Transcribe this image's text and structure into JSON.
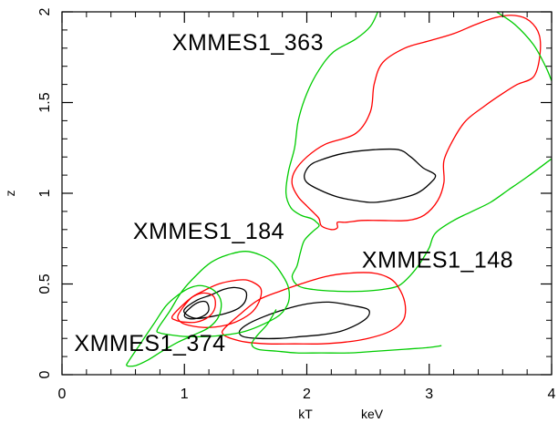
{
  "chart_data": {
    "type": "contour",
    "title": "",
    "xlabel": "kT",
    "xlabel_unit": "keV",
    "ylabel": "z",
    "xlim": [
      0,
      4
    ],
    "ylim": [
      0,
      2
    ],
    "x_ticks": [
      0,
      1,
      2,
      3,
      4
    ],
    "x_tick_labels": [
      "0",
      "1",
      "2",
      "3",
      "4"
    ],
    "y_ticks": [
      0,
      0.5,
      1,
      1.5,
      2
    ],
    "y_tick_labels": [
      "0",
      "0.5",
      "1",
      "1.5",
      "2"
    ],
    "grid": false,
    "legend": "none",
    "level_colors": {
      "inner": "#000000",
      "middle": "#ff0000",
      "outer": "#00cc00"
    },
    "annotations": [
      {
        "text": "XMMES1_363",
        "x": 0.9,
        "y": 1.79
      },
      {
        "text": "XMMES1_184",
        "x": 0.58,
        "y": 0.75
      },
      {
        "text": "XMMES1_148",
        "x": 2.45,
        "y": 0.59
      },
      {
        "text": "XMMES1_374",
        "x": 0.1,
        "y": 0.13
      }
    ],
    "contours": [
      {
        "source": "XMMES1_363",
        "level": "inner",
        "color": "#000000",
        "closed": true,
        "points": [
          [
            2.1,
            1.18
          ],
          [
            2.3,
            1.22
          ],
          [
            2.55,
            1.24
          ],
          [
            2.75,
            1.24
          ],
          [
            2.85,
            1.2
          ],
          [
            2.95,
            1.14
          ],
          [
            3.05,
            1.1
          ],
          [
            3.0,
            1.05
          ],
          [
            2.9,
            1.0
          ],
          [
            2.75,
            0.97
          ],
          [
            2.55,
            0.95
          ],
          [
            2.4,
            0.96
          ],
          [
            2.25,
            0.98
          ],
          [
            2.1,
            1.02
          ],
          [
            2.0,
            1.06
          ],
          [
            1.98,
            1.1
          ],
          [
            2.02,
            1.15
          ]
        ]
      },
      {
        "source": "XMMES1_363",
        "level": "middle",
        "color": "#ff0000",
        "closed": true,
        "points": [
          [
            1.9,
            1.12
          ],
          [
            2.0,
            1.2
          ],
          [
            2.15,
            1.27
          ],
          [
            2.4,
            1.33
          ],
          [
            2.52,
            1.45
          ],
          [
            2.55,
            1.6
          ],
          [
            2.62,
            1.72
          ],
          [
            2.8,
            1.8
          ],
          [
            3.0,
            1.84
          ],
          [
            3.2,
            1.88
          ],
          [
            3.38,
            1.93
          ],
          [
            3.55,
            1.97
          ],
          [
            3.7,
            1.98
          ],
          [
            3.82,
            1.95
          ],
          [
            3.9,
            1.87
          ],
          [
            3.9,
            1.74
          ],
          [
            3.85,
            1.64
          ],
          [
            3.72,
            1.6
          ],
          [
            3.6,
            1.55
          ],
          [
            3.45,
            1.48
          ],
          [
            3.3,
            1.4
          ],
          [
            3.2,
            1.3
          ],
          [
            3.12,
            1.18
          ],
          [
            3.12,
            1.06
          ],
          [
            3.07,
            0.96
          ],
          [
            2.96,
            0.88
          ],
          [
            2.82,
            0.85
          ],
          [
            2.6,
            0.85
          ],
          [
            2.45,
            0.85
          ],
          [
            2.32,
            0.84
          ],
          [
            2.25,
            0.84
          ],
          [
            2.25,
            0.81
          ],
          [
            2.2,
            0.8
          ],
          [
            2.12,
            0.82
          ],
          [
            2.1,
            0.86
          ],
          [
            2.06,
            0.89
          ],
          [
            2.0,
            0.93
          ],
          [
            1.93,
            0.98
          ],
          [
            1.88,
            1.05
          ]
        ]
      },
      {
        "source": "XMMES1_363",
        "level": "outer",
        "color": "#00cc00",
        "closed": false,
        "points": [
          [
            2.58,
            2.0
          ],
          [
            2.52,
            1.92
          ],
          [
            2.4,
            1.85
          ],
          [
            2.22,
            1.78
          ],
          [
            2.1,
            1.68
          ],
          [
            2.0,
            1.55
          ],
          [
            1.93,
            1.4
          ],
          [
            1.9,
            1.25
          ],
          [
            1.85,
            1.12
          ],
          [
            1.83,
            1.0
          ],
          [
            1.87,
            0.92
          ],
          [
            1.95,
            0.88
          ],
          [
            2.04,
            0.86
          ],
          [
            2.08,
            0.84
          ],
          [
            2.1,
            0.82
          ],
          [
            2.05,
            0.79
          ],
          [
            1.98,
            0.74
          ],
          [
            1.95,
            0.68
          ],
          [
            1.92,
            0.6
          ],
          [
            1.88,
            0.54
          ],
          [
            1.93,
            0.49
          ],
          [
            2.05,
            0.47
          ],
          [
            2.25,
            0.46
          ],
          [
            2.45,
            0.46
          ],
          [
            2.62,
            0.47
          ],
          [
            2.75,
            0.49
          ],
          [
            2.85,
            0.55
          ],
          [
            2.93,
            0.62
          ],
          [
            3.0,
            0.7
          ],
          [
            3.05,
            0.78
          ],
          [
            3.2,
            0.85
          ],
          [
            3.35,
            0.9
          ],
          [
            3.5,
            0.95
          ],
          [
            3.65,
            1.02
          ],
          [
            3.8,
            1.09
          ],
          [
            3.92,
            1.15
          ],
          [
            4.0,
            1.19
          ]
        ]
      },
      {
        "source": "XMMES1_363",
        "level": "outer",
        "color": "#00cc00",
        "closed": false,
        "points": [
          [
            3.55,
            2.0
          ],
          [
            3.7,
            1.93
          ],
          [
            3.85,
            1.82
          ],
          [
            3.95,
            1.7
          ],
          [
            4.0,
            1.62
          ]
        ]
      },
      {
        "source": "XMMES1_148",
        "level": "inner",
        "color": "#000000",
        "closed": true,
        "points": [
          [
            1.45,
            0.24
          ],
          [
            1.52,
            0.28
          ],
          [
            1.65,
            0.32
          ],
          [
            1.82,
            0.36
          ],
          [
            2.0,
            0.39
          ],
          [
            2.18,
            0.4
          ],
          [
            2.38,
            0.38
          ],
          [
            2.5,
            0.36
          ],
          [
            2.5,
            0.32
          ],
          [
            2.42,
            0.28
          ],
          [
            2.28,
            0.24
          ],
          [
            2.12,
            0.22
          ],
          [
            1.95,
            0.21
          ],
          [
            1.78,
            0.2
          ],
          [
            1.6,
            0.2
          ],
          [
            1.48,
            0.21
          ]
        ]
      },
      {
        "source": "XMMES1_148",
        "level": "middle",
        "color": "#ff0000",
        "closed": true,
        "points": [
          [
            1.32,
            0.25
          ],
          [
            1.45,
            0.33
          ],
          [
            1.6,
            0.41
          ],
          [
            1.78,
            0.46
          ],
          [
            1.95,
            0.5
          ],
          [
            2.15,
            0.54
          ],
          [
            2.35,
            0.56
          ],
          [
            2.55,
            0.56
          ],
          [
            2.68,
            0.53
          ],
          [
            2.75,
            0.48
          ],
          [
            2.8,
            0.4
          ],
          [
            2.8,
            0.32
          ],
          [
            2.75,
            0.27
          ],
          [
            2.65,
            0.23
          ],
          [
            2.5,
            0.2
          ],
          [
            2.32,
            0.18
          ],
          [
            2.12,
            0.17
          ],
          [
            1.9,
            0.17
          ],
          [
            1.68,
            0.17
          ],
          [
            1.5,
            0.18
          ],
          [
            1.38,
            0.2
          ],
          [
            1.32,
            0.22
          ]
        ]
      },
      {
        "source": "XMMES1_148",
        "level": "outer",
        "color": "#00cc00",
        "closed": false,
        "points": [
          [
            1.75,
            0.36
          ],
          [
            1.68,
            0.28
          ],
          [
            1.6,
            0.22
          ],
          [
            1.55,
            0.17
          ],
          [
            1.6,
            0.14
          ],
          [
            1.75,
            0.13
          ],
          [
            1.92,
            0.12
          ],
          [
            2.12,
            0.12
          ],
          [
            2.35,
            0.12
          ],
          [
            2.58,
            0.13
          ],
          [
            2.8,
            0.14
          ],
          [
            3.0,
            0.15
          ],
          [
            3.1,
            0.16
          ]
        ]
      },
      {
        "source": "XMMES1_184",
        "level": "inner",
        "color": "#000000",
        "closed": true,
        "points": [
          [
            1.0,
            0.36
          ],
          [
            1.1,
            0.41
          ],
          [
            1.22,
            0.44
          ],
          [
            1.32,
            0.47
          ],
          [
            1.42,
            0.48
          ],
          [
            1.5,
            0.46
          ],
          [
            1.5,
            0.41
          ],
          [
            1.45,
            0.37
          ],
          [
            1.35,
            0.34
          ],
          [
            1.22,
            0.32
          ],
          [
            1.1,
            0.31
          ],
          [
            1.02,
            0.33
          ]
        ]
      },
      {
        "source": "XMMES1_184",
        "level": "middle",
        "color": "#ff0000",
        "closed": true,
        "points": [
          [
            0.95,
            0.33
          ],
          [
            1.05,
            0.42
          ],
          [
            1.15,
            0.46
          ],
          [
            1.28,
            0.5
          ],
          [
            1.42,
            0.52
          ],
          [
            1.52,
            0.52
          ],
          [
            1.62,
            0.48
          ],
          [
            1.62,
            0.42
          ],
          [
            1.56,
            0.35
          ],
          [
            1.45,
            0.3
          ],
          [
            1.32,
            0.27
          ],
          [
            1.18,
            0.26
          ],
          [
            1.05,
            0.27
          ],
          [
            0.97,
            0.29
          ]
        ]
      },
      {
        "source": "XMMES1_184",
        "level": "outer",
        "color": "#00cc00",
        "closed": true,
        "points": [
          [
            0.78,
            0.25
          ],
          [
            0.88,
            0.35
          ],
          [
            0.98,
            0.46
          ],
          [
            1.1,
            0.55
          ],
          [
            1.22,
            0.62
          ],
          [
            1.35,
            0.66
          ],
          [
            1.5,
            0.68
          ],
          [
            1.62,
            0.66
          ],
          [
            1.72,
            0.62
          ],
          [
            1.8,
            0.55
          ],
          [
            1.85,
            0.48
          ],
          [
            1.85,
            0.4
          ],
          [
            1.78,
            0.33
          ],
          [
            1.65,
            0.28
          ],
          [
            1.5,
            0.24
          ],
          [
            1.35,
            0.22
          ],
          [
            1.18,
            0.21
          ],
          [
            1.02,
            0.21
          ],
          [
            0.88,
            0.22
          ],
          [
            0.8,
            0.23
          ]
        ]
      },
      {
        "source": "XMMES1_374",
        "level": "inner",
        "color": "#000000",
        "closed": true,
        "points": [
          [
            1.0,
            0.33
          ],
          [
            1.05,
            0.37
          ],
          [
            1.12,
            0.4
          ],
          [
            1.18,
            0.4
          ],
          [
            1.2,
            0.36
          ],
          [
            1.17,
            0.33
          ],
          [
            1.1,
            0.31
          ],
          [
            1.03,
            0.31
          ]
        ]
      },
      {
        "source": "XMMES1_374",
        "level": "middle",
        "color": "#ff0000",
        "closed": true,
        "points": [
          [
            0.9,
            0.32
          ],
          [
            0.98,
            0.38
          ],
          [
            1.07,
            0.43
          ],
          [
            1.16,
            0.45
          ],
          [
            1.24,
            0.43
          ],
          [
            1.25,
            0.37
          ],
          [
            1.2,
            0.32
          ],
          [
            1.1,
            0.29
          ],
          [
            1.0,
            0.29
          ],
          [
            0.93,
            0.3
          ]
        ]
      },
      {
        "source": "XMMES1_374",
        "level": "outer",
        "color": "#00cc00",
        "closed": true,
        "points": [
          [
            0.55,
            0.08
          ],
          [
            0.65,
            0.18
          ],
          [
            0.75,
            0.28
          ],
          [
            0.85,
            0.38
          ],
          [
            0.95,
            0.44
          ],
          [
            1.05,
            0.48
          ],
          [
            1.15,
            0.49
          ],
          [
            1.25,
            0.46
          ],
          [
            1.3,
            0.4
          ],
          [
            1.28,
            0.32
          ],
          [
            1.2,
            0.26
          ],
          [
            1.08,
            0.22
          ],
          [
            0.95,
            0.18
          ],
          [
            0.82,
            0.13
          ],
          [
            0.7,
            0.08
          ],
          [
            0.6,
            0.05
          ],
          [
            0.53,
            0.05
          ]
        ]
      }
    ]
  }
}
